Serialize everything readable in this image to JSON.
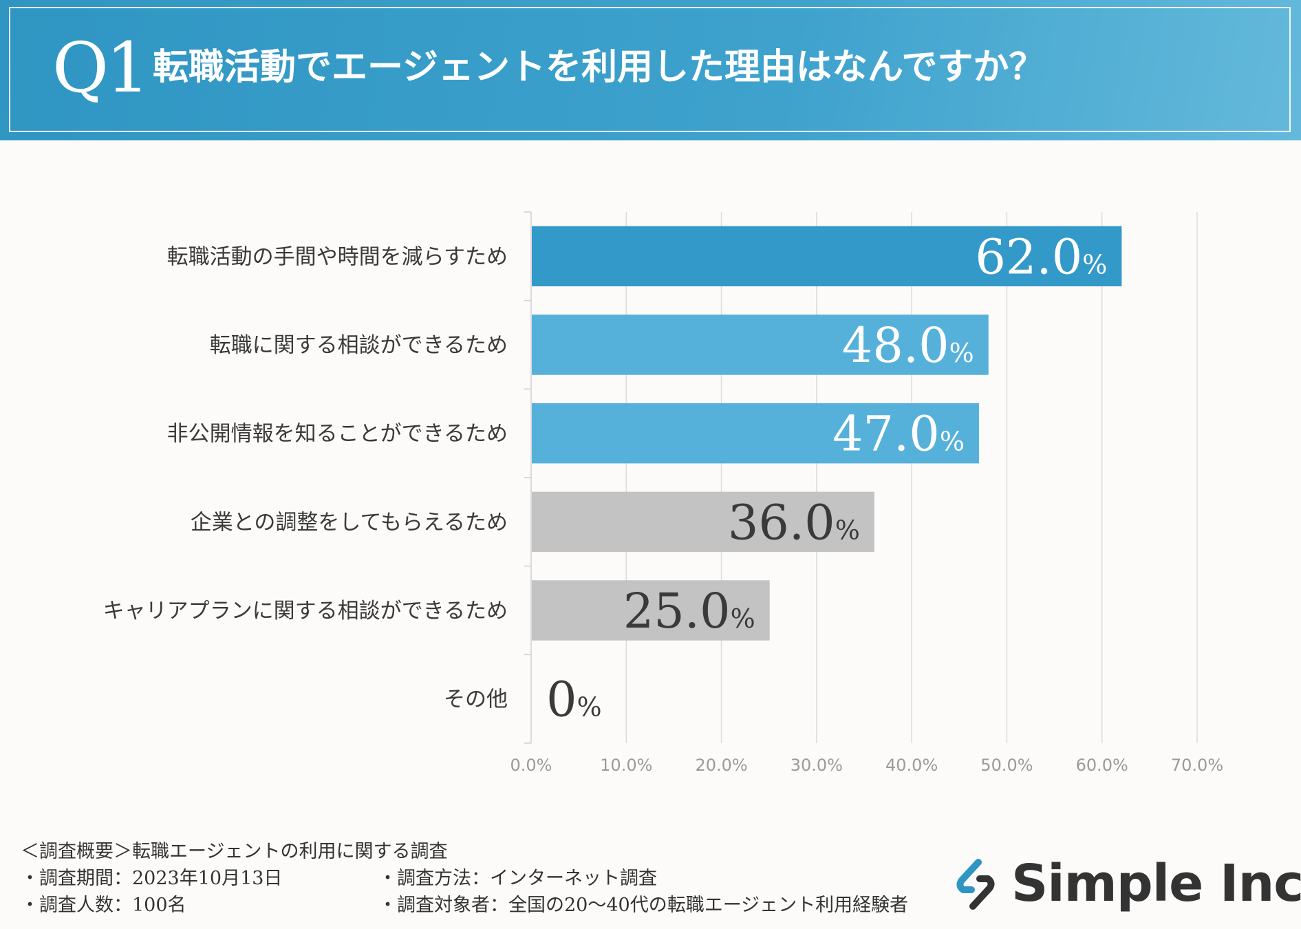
{
  "header": {
    "q_label": "Q1",
    "title": "転職活動でエージェントを利用した理由はなんですか？"
  },
  "chart_data": {
    "type": "bar",
    "orientation": "horizontal",
    "title": "転職活動でエージェントを利用した理由はなんですか？",
    "categories": [
      "転職活動の手間や時間を減らすため",
      "転職に関する相談ができるため",
      "非公開情報を知ることができるため",
      "企業との調整をしてもらえるため",
      "キャリアプランに関する相談ができるため",
      "その他"
    ],
    "values": [
      62.0,
      48.0,
      47.0,
      36.0,
      25.0,
      0
    ],
    "value_labels": [
      "62.0",
      "48.0",
      "47.0",
      "36.0",
      "25.0",
      "0"
    ],
    "value_suffix": "%",
    "bar_colors": [
      "#3399c9",
      "#56b1da",
      "#56b1da",
      "#c3c3c3",
      "#c3c3c3",
      "#c3c3c3"
    ],
    "label_colors": [
      "#ffffff",
      "#ffffff",
      "#ffffff",
      "#3a3a3a",
      "#3a3a3a",
      "#3a3a3a"
    ],
    "xlim": [
      0,
      70
    ],
    "xticks": [
      0,
      10,
      20,
      30,
      40,
      50,
      60,
      70
    ],
    "xtick_labels": [
      "0.0%",
      "10.0%",
      "20.0%",
      "30.0%",
      "40.0%",
      "50.0%",
      "60.0%",
      "70.0%"
    ],
    "grid": true
  },
  "footer": {
    "summary": "＜調査概要＞転職エージェントの利用に関する調査",
    "period": "・調査期間：2023年10月13日",
    "method": "・調査方法：インターネット調査",
    "count": "・調査人数：100名",
    "target": "・調査対象者：全国の20～40代の転職エージェント利用経験者"
  },
  "logo": {
    "text": "Simple Inc.",
    "colors": {
      "primary": "#333333",
      "accent": "#2f95c2"
    }
  }
}
